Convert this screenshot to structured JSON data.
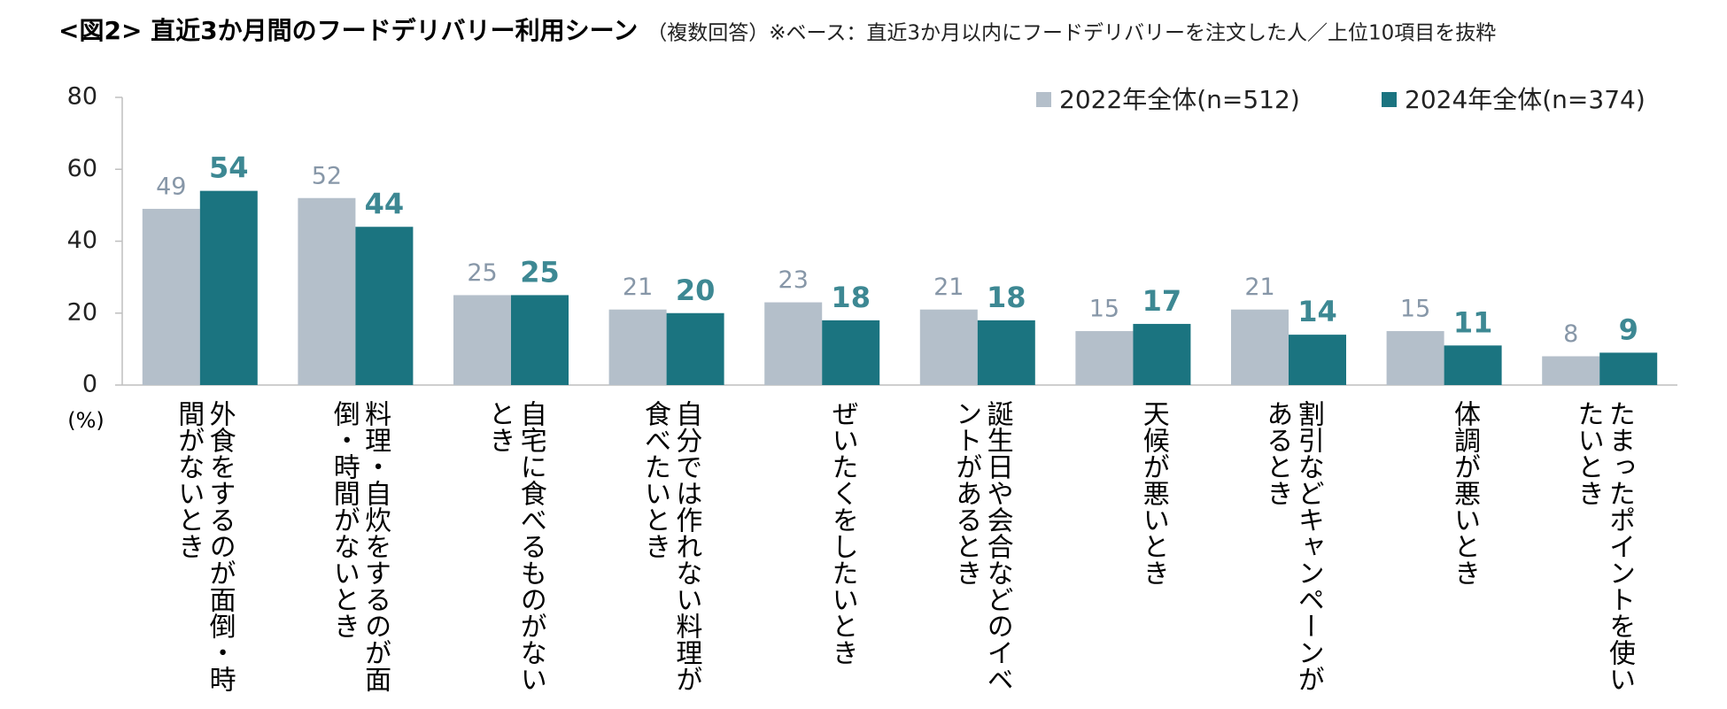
{
  "chart_data": {
    "type": "bar",
    "title": "<図2> 直近3か月間のフードデリバリー利用シーン",
    "subtitle": "（複数回答）※ベース：直近3か月以内にフードデリバリーを注文した人／上位10項目を抜粋",
    "y_label": "(%)",
    "categories": [
      "外食をするのが面倒・時間がないとき",
      "料理・自炊をするのが面倒・時間がないとき",
      "自宅に食べるものがないとき",
      "自分では作れない料理が食べたいとき",
      "ぜいたくをしたいとき",
      "誕生日や会合などのイベントがあるとき",
      "天候が悪いとき",
      "割引などキャンペーンがあるとき",
      "体調が悪いとき",
      "たまったポイントを使いたいとき"
    ],
    "series": [
      {
        "name": "2022年全体(n=512)",
        "color": "#b4bfca",
        "label_color": "#8797a8",
        "values": [
          49,
          52,
          25,
          21,
          23,
          21,
          15,
          21,
          15,
          8
        ]
      },
      {
        "name": "2024年全体(n=374)",
        "color": "#1b7480",
        "label_color": "#3d8893",
        "values": [
          54,
          44,
          25,
          20,
          18,
          18,
          17,
          14,
          11,
          9
        ]
      }
    ],
    "ylim": [
      0,
      80
    ],
    "yticks": [
      0,
      20,
      40,
      60,
      80
    ],
    "grid": false,
    "legend": "top-right"
  }
}
